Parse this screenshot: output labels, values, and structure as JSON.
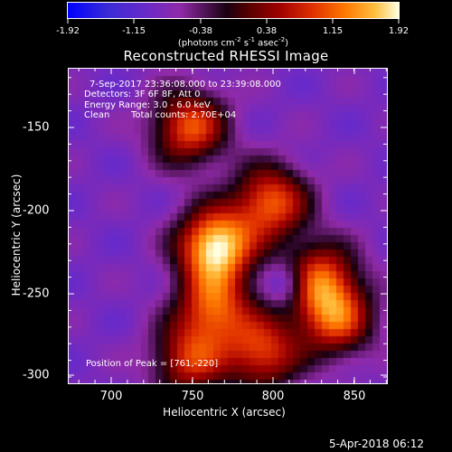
{
  "colorbar": {
    "ticks": [
      "-1.92",
      "-1.15",
      "-0.38",
      "0.38",
      "1.15",
      "1.92"
    ],
    "unit_prefix": "(photons cm",
    "unit_exp1": "-2",
    "unit_mid": " s",
    "unit_exp2": "-1",
    "unit_mid2": " asec",
    "unit_exp3": "-2",
    "unit_suffix": ")"
  },
  "title": "Reconstructed RHESSI Image",
  "info": {
    "time_range": "7-Sep-2017 23:36:08.000 to 23:39:08.000",
    "detectors": "Detectors: 3F 6F 8F, Att 0",
    "energy": "Energy Range: 3.0 - 6.0 keV",
    "method": "Clean",
    "counts": "Total counts: 2.70E+04",
    "peak": "Position of Peak = [761,-220]"
  },
  "axes": {
    "xlabel": "Heliocentric X (arcsec)",
    "ylabel": "Heliocentric Y (arcsec)",
    "xticks": [
      "700",
      "750",
      "800",
      "850"
    ],
    "yticks": [
      "-150",
      "-200",
      "-250",
      "-300"
    ]
  },
  "timestamp": "5-Apr-2018 06:12",
  "chart_data": {
    "type": "heatmap",
    "title": "Reconstructed RHESSI Image",
    "xlabel": "Heliocentric X (arcsec)",
    "ylabel": "Heliocentric Y (arcsec)",
    "xlim": [
      671,
      866
    ],
    "ylim": [
      -304,
      -111
    ],
    "color_range": [
      -1.92,
      1.92
    ],
    "peak": [
      761,
      -220
    ],
    "sources": [
      {
        "x": 761,
        "y": -220,
        "amplitude": 1.92
      },
      {
        "x": 745,
        "y": -147,
        "amplitude": 1.05
      },
      {
        "x": 795,
        "y": -193,
        "amplitude": 1.1
      },
      {
        "x": 825,
        "y": -240,
        "amplitude": 0.95
      },
      {
        "x": 835,
        "y": -265,
        "amplitude": 0.9
      },
      {
        "x": 760,
        "y": -258,
        "amplitude": 0.95
      },
      {
        "x": 790,
        "y": -285,
        "amplitude": 0.9
      },
      {
        "x": 745,
        "y": -290,
        "amplitude": 0.75
      }
    ],
    "hole": {
      "x": 805,
      "y": -243,
      "depth": -0.9
    }
  }
}
